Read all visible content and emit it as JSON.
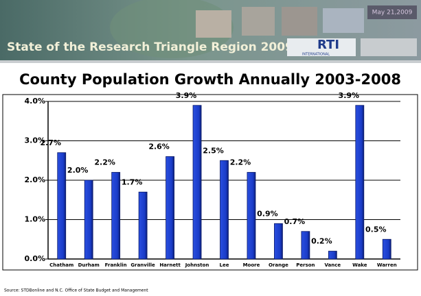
{
  "header": {
    "title": "State of the Research Triangle Region 2009",
    "date": "May 21,2009",
    "logo": "RTI",
    "logo_sub": "INTERNATIONAL"
  },
  "chart_data": {
    "type": "bar",
    "title": "County Population Growth Annually 2003-2008",
    "categories": [
      "Chatham",
      "Durham",
      "Franklin",
      "Granville",
      "Harnett",
      "Johnston",
      "Lee",
      "Moore",
      "Orange",
      "Person",
      "Vance",
      "Wake",
      "Warren"
    ],
    "values": [
      2.7,
      2.0,
      2.2,
      1.7,
      2.6,
      3.9,
      2.5,
      2.2,
      0.9,
      0.7,
      0.2,
      3.9,
      0.5
    ],
    "value_labels": [
      "2.7%",
      "2.0%",
      "2.2%",
      "1.7%",
      "2.6%",
      "3.9%",
      "2.5%",
      "2.2%",
      "0.9%",
      "0.7%",
      "0.2%",
      "3.9%",
      "0.5%"
    ],
    "color": "#1a3cc8",
    "ylim": [
      0,
      4
    ],
    "yticks": [
      {
        "value": 0,
        "label": "0.0%"
      },
      {
        "value": 1,
        "label": "1.0%"
      },
      {
        "value": 2,
        "label": "2.0%"
      },
      {
        "value": 3,
        "label": "3.0%"
      },
      {
        "value": 4,
        "label": "4.0%"
      }
    ],
    "grid": true,
    "source": "Source: STDBonline and N.C. Office of State Budget and Management"
  }
}
